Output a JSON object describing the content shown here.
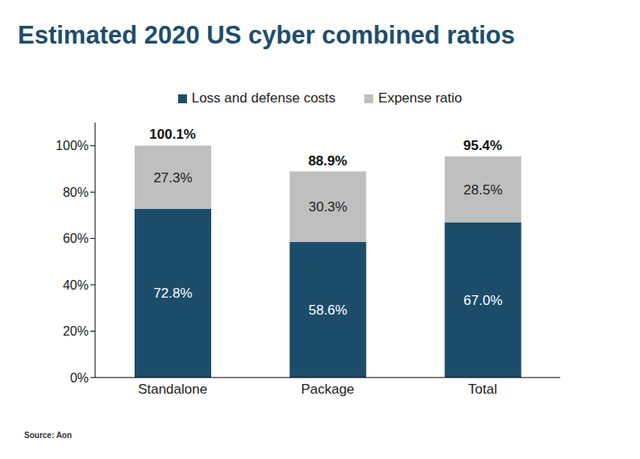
{
  "chart_data": {
    "type": "bar",
    "title": "Estimated 2020 US cyber combined ratios",
    "source": "Source: Aon",
    "categories": [
      "Standalone",
      "Package",
      "Total"
    ],
    "series": [
      {
        "name": "Loss and defense costs",
        "color": "#1b4d6b",
        "values": [
          72.8,
          58.6,
          67.0
        ],
        "value_labels": [
          "72.8%",
          "58.6%",
          "67.0%"
        ]
      },
      {
        "name": "Expense ratio",
        "color": "#bfbfbf",
        "values": [
          27.3,
          30.3,
          28.5
        ],
        "value_labels": [
          "27.3%",
          "30.3%",
          "28.5%"
        ]
      }
    ],
    "totals": {
      "values": [
        100.1,
        88.9,
        95.4
      ],
      "value_labels": [
        "100.1%",
        "88.9%",
        "95.4%"
      ]
    },
    "ylim": [
      0,
      110
    ],
    "yticks": [
      {
        "value": 0,
        "label": "0%"
      },
      {
        "value": 20,
        "label": "20%"
      },
      {
        "value": 40,
        "label": "40%"
      },
      {
        "value": 60,
        "label": "60%"
      },
      {
        "value": 80,
        "label": "80%"
      },
      {
        "value": 100,
        "label": "100%"
      }
    ],
    "stacked": true,
    "data_labels": true,
    "legend": "top",
    "grid": false
  }
}
